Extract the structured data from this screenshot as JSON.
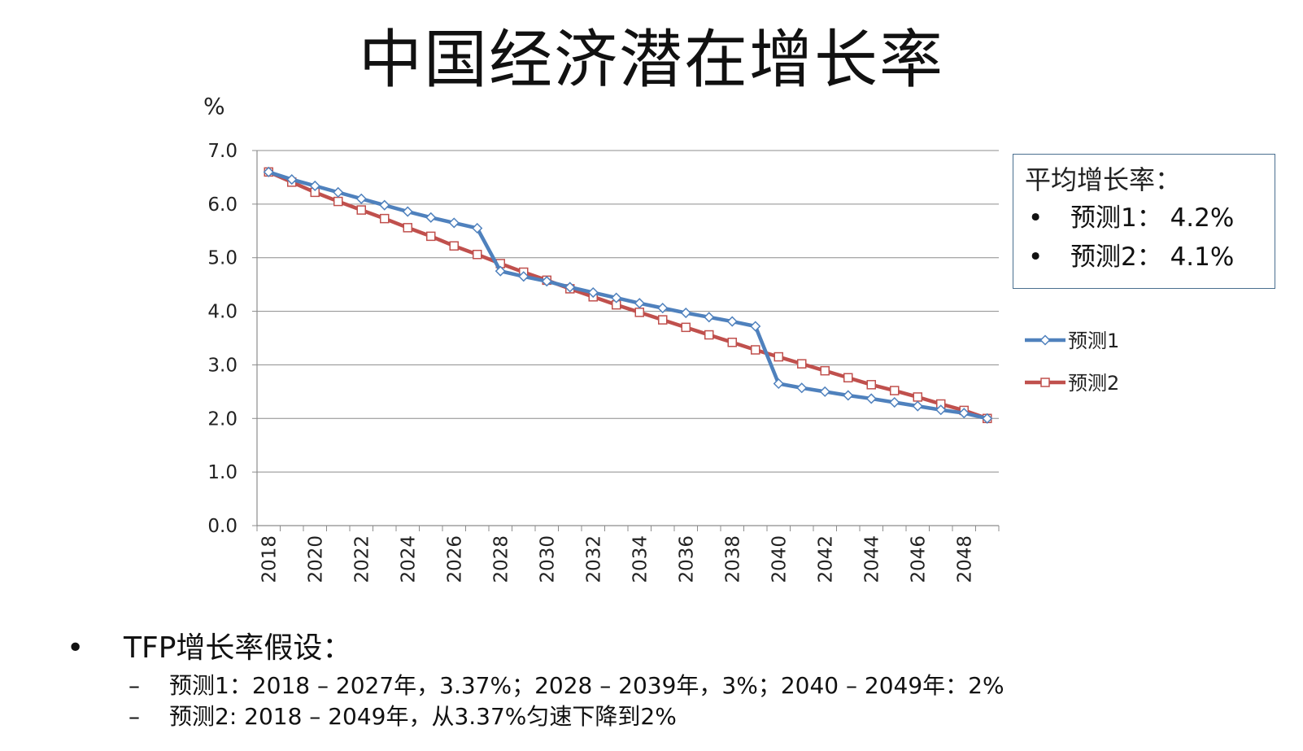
{
  "title": "中国经济潜在增长率",
  "chart_data": {
    "type": "line",
    "title": "中国经济潜在增长率",
    "ylabel": "%",
    "ylim": [
      0,
      7
    ],
    "yticks": [
      "0.0",
      "1.0",
      "2.0",
      "3.0",
      "4.0",
      "5.0",
      "6.0",
      "7.0"
    ],
    "x": [
      2018,
      2019,
      2020,
      2021,
      2022,
      2023,
      2024,
      2025,
      2026,
      2027,
      2028,
      2029,
      2030,
      2031,
      2032,
      2033,
      2034,
      2035,
      2036,
      2037,
      2038,
      2039,
      2040,
      2041,
      2042,
      2043,
      2044,
      2045,
      2046,
      2047,
      2048,
      2049
    ],
    "xticks": [
      "2018",
      "2020",
      "2022",
      "2024",
      "2026",
      "2028",
      "2030",
      "2032",
      "2034",
      "2036",
      "2038",
      "2040",
      "2042",
      "2044",
      "2046",
      "2048"
    ],
    "grid": true,
    "series": [
      {
        "name": "预测1",
        "color": "#4f81bd",
        "marker": "diamond",
        "values": [
          6.6,
          6.46,
          6.34,
          6.22,
          6.1,
          5.98,
          5.86,
          5.75,
          5.65,
          5.55,
          4.75,
          4.65,
          4.56,
          4.45,
          4.35,
          4.25,
          4.15,
          4.06,
          3.97,
          3.89,
          3.81,
          3.72,
          2.65,
          2.57,
          2.5,
          2.43,
          2.37,
          2.3,
          2.23,
          2.16,
          2.1,
          2.0
        ]
      },
      {
        "name": "预测2",
        "color": "#c0504d",
        "marker": "square",
        "values": [
          6.6,
          6.41,
          6.22,
          6.05,
          5.89,
          5.73,
          5.56,
          5.4,
          5.22,
          5.06,
          4.89,
          4.73,
          4.58,
          4.42,
          4.27,
          4.12,
          3.98,
          3.84,
          3.7,
          3.56,
          3.42,
          3.28,
          3.15,
          3.02,
          2.89,
          2.76,
          2.63,
          2.52,
          2.4,
          2.27,
          2.15,
          2.0
        ]
      }
    ],
    "legend": "right"
  },
  "avg_box": {
    "title": "平均增长率：",
    "bullet": "•",
    "items": [
      "预测1：  4.2%",
      "预测2：  4.1%"
    ]
  },
  "notes": {
    "bullet": "•",
    "main": "TFP增长率假设：",
    "dash": "–",
    "subs": [
      "预测1：2018 – 2027年，3.37%；2028 – 2039年，3%；2040 – 2049年：2%",
      "预测2: 2018 – 2049年，从3.37%匀速下降到2%"
    ]
  }
}
